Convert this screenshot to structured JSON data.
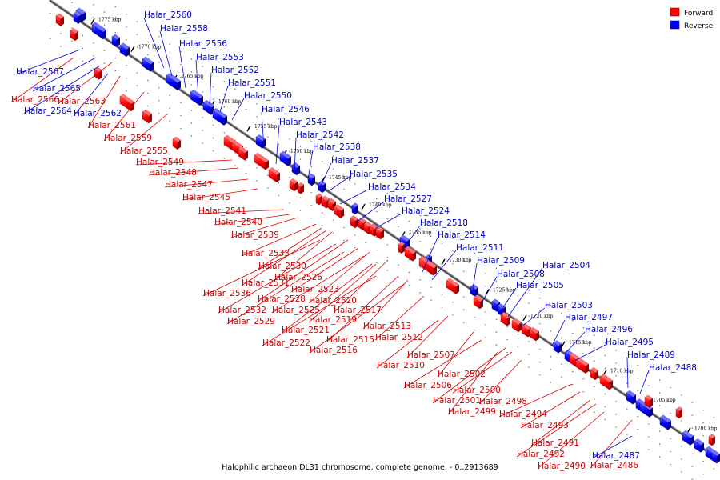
{
  "caption": "Halophilic archaeon DL31 chromosome, complete genome. - 0..2913689",
  "legend": {
    "forward": {
      "label": "Forward",
      "color": "#ff0000"
    },
    "reverse": {
      "label": "Reverse",
      "color": "#0000ff"
    }
  },
  "ticks": [
    "1775 kbp",
    "1770 kbp",
    "1765 kbp",
    "1760 kbp",
    "1755 kbp",
    "1750 kbp",
    "1745 kbp",
    "1740 kbp",
    "1735 kbp",
    "1730 kbp",
    "1725 kbp",
    "1720 kbp",
    "1715 kbp",
    "1710 kbp",
    "1705 kbp",
    "1700 kbp"
  ],
  "reverse_labels": [
    "Halar_2560",
    "Halar_2558",
    "Halar_2556",
    "Halar_2553",
    "Halar_2552",
    "Halar_2551",
    "Halar_2550",
    "Halar_2546",
    "Halar_2543",
    "Halar_2542",
    "Halar_2538",
    "Halar_2537",
    "Halar_2535",
    "Halar_2534",
    "Halar_2527",
    "Halar_2524",
    "Halar_2518",
    "Halar_2514",
    "Halar_2511",
    "Halar_2509",
    "Halar_2508",
    "Halar_2505",
    "Halar_2504",
    "Halar_2503",
    "Halar_2497",
    "Halar_2496",
    "Halar_2495",
    "Halar_2489",
    "Halar_2488",
    "Halar_2487",
    "Halar_2567",
    "Halar_2565",
    "Halar_2564",
    "Halar_2562"
  ],
  "forward_labels": [
    "Halar_2566",
    "Halar_2563",
    "Halar_2561",
    "Halar_2559",
    "Halar_2555",
    "Halar_2549",
    "Halar_2548",
    "Halar_2547",
    "Halar_2545",
    "Halar_2541",
    "Halar_2540",
    "Halar_2539",
    "Halar_2533",
    "Halar_2530",
    "Halar_2526",
    "Halar_2531",
    "Halar_2536",
    "Halar_2528",
    "Halar_2523",
    "Halar_2532",
    "Halar_2525",
    "Halar_2520",
    "Halar_2529",
    "Halar_2519",
    "Halar_2517",
    "Halar_2521",
    "Halar_2515",
    "Halar_2513",
    "Halar_2522",
    "Halar_2516",
    "Halar_2512",
    "Halar_2507",
    "Halar_2510",
    "Halar_2502",
    "Halar_2506",
    "Halar_2500",
    "Halar_2501",
    "Halar_2498",
    "Halar_2499",
    "Halar_2494",
    "Halar_2493",
    "Halar_2491",
    "Halar_2492",
    "Halar_2490",
    "Halar_2486"
  ]
}
